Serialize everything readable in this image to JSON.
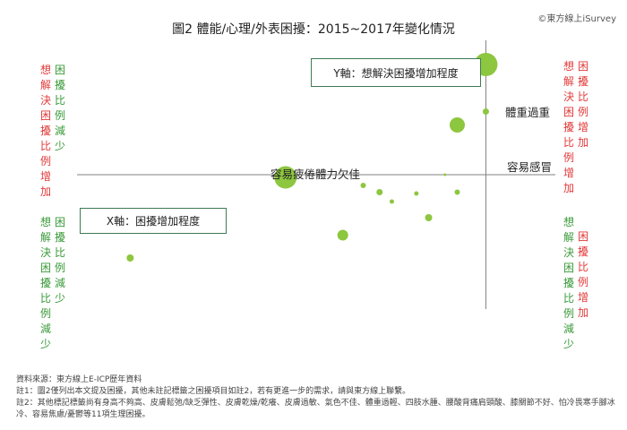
{
  "title": "圖2  體能/心理/外表困擾：2015~2017年變化情況",
  "watermark": "©東方線上iSurvey",
  "quadrant_text": {
    "top_left_a": "想解決困擾比例增加",
    "top_left_b": "困擾比例減少",
    "bottom_left_a": "想解決困擾比例減少",
    "bottom_left_b": "困擾比例減少",
    "top_right_a": "想解決困擾比例增加",
    "top_right_b": "困擾比例增加",
    "bottom_right_a": "想解決困擾比例減少",
    "bottom_right_b": "困擾比例增加"
  },
  "axis_labels": {
    "y": "Y軸：想解決困擾增加程度",
    "x": "X軸：困擾增加程度"
  },
  "notes": [
    "資料來源：東方線上E-ICP歷年資料",
    "註1：圖2僅列出本文提及困擾，其他未註記標籤之困擾項目如註2，若有更進一步的需求，請與東方線上聯繫。",
    "註2：其他標記標籤尚有身高不夠高、皮膚鬆弛/缺乏彈性、皮膚乾燥/乾癢、皮膚過敏、氣色不佳、體重過輕、四肢水腫、腰酸背痛肩頸酸、膝關節不好、怕冷畏寒手腳冰冷、容易焦慮/憂鬱等11項生理困擾。"
  ],
  "colors": {
    "bubble": "#8dc63f",
    "axis": "#808080",
    "red": "#e23a3a",
    "green": "#3a9a3a",
    "box_border": "#3e7a55"
  },
  "chart_data": {
    "type": "scatter",
    "xlabel": "X軸：困擾增加程度",
    "ylabel": "Y軸：想解決困擾增加程度",
    "xlim": [
      -100,
      1
    ],
    "ylim": [
      -100,
      100
    ],
    "points": [
      {
        "label": "體重過重",
        "x": 0,
        "y": 82,
        "size": 13
      },
      {
        "label": "",
        "x": 0,
        "y": 47,
        "size": 3.5
      },
      {
        "label": "容易感冒",
        "x": -7,
        "y": 37,
        "size": 8.5
      },
      {
        "label": "容易疲倦體力欠佳",
        "x": -49,
        "y": -2,
        "size": 12.5
      },
      {
        "label": "",
        "x": -10,
        "y": 0,
        "size": 1.5
      },
      {
        "label": "",
        "x": -7,
        "y": -13,
        "size": 3
      },
      {
        "label": "",
        "x": -17,
        "y": -14,
        "size": 2.5
      },
      {
        "label": "",
        "x": -30,
        "y": -8,
        "size": 3
      },
      {
        "label": "",
        "x": -26,
        "y": -13,
        "size": 3.5
      },
      {
        "label": "",
        "x": -23,
        "y": -20,
        "size": 2.5
      },
      {
        "label": "",
        "x": -14,
        "y": -32,
        "size": 4
      },
      {
        "label": "",
        "x": -35,
        "y": -45,
        "size": 6
      },
      {
        "label": "",
        "x": -87,
        "y": -62,
        "size": 4
      }
    ]
  }
}
